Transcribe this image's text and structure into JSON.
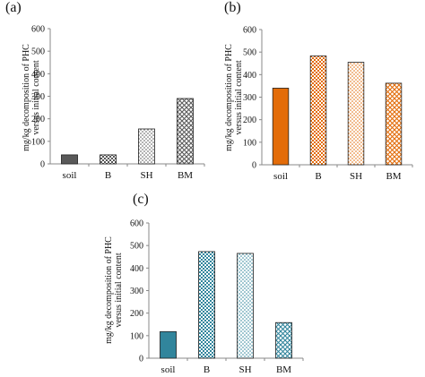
{
  "panels": [
    {
      "letter": "(a)"
    },
    {
      "letter": "(b)"
    },
    {
      "letter": "(c)"
    }
  ],
  "ylabel_line1": "mg/kg decomposition of PHC",
  "ylabel_line2": "versus initial content",
  "chart_data": [
    {
      "type": "bar",
      "title": "",
      "ylabel": "mg/kg decomposition of PHC versus initial content",
      "categories": [
        "soil",
        "B",
        "SH",
        "BM"
      ],
      "values": [
        40,
        40,
        155,
        290
      ],
      "ylim": [
        0,
        600
      ],
      "yticks": [
        0,
        100,
        200,
        300,
        400,
        500,
        600
      ],
      "grid": false,
      "colors": [
        "#595959",
        "#808080",
        "#b0b0b0",
        "#8a8a8a"
      ]
    },
    {
      "type": "bar",
      "title": "",
      "ylabel": "mg/kg decomposition of PHC versus initial content",
      "categories": [
        "soil",
        "B",
        "SH",
        "BM"
      ],
      "values": [
        340,
        483,
        455,
        362
      ],
      "ylim": [
        0,
        600
      ],
      "yticks": [
        0,
        100,
        200,
        300,
        400,
        500,
        600
      ],
      "grid": false,
      "colors": [
        "#e36c09",
        "#e8a060",
        "#f0d9a8",
        "#e0a070"
      ]
    },
    {
      "type": "bar",
      "title": "",
      "ylabel": "mg/kg decomposition of PHC versus initial content",
      "categories": [
        "soil",
        "B",
        "SH",
        "BM"
      ],
      "values": [
        118,
        473,
        465,
        158
      ],
      "ylim": [
        0,
        600
      ],
      "yticks": [
        0,
        100,
        200,
        300,
        400,
        500,
        600
      ],
      "grid": false,
      "colors": [
        "#31859c",
        "#4a93a8",
        "#8cc4cf",
        "#5fa3b5"
      ]
    }
  ]
}
